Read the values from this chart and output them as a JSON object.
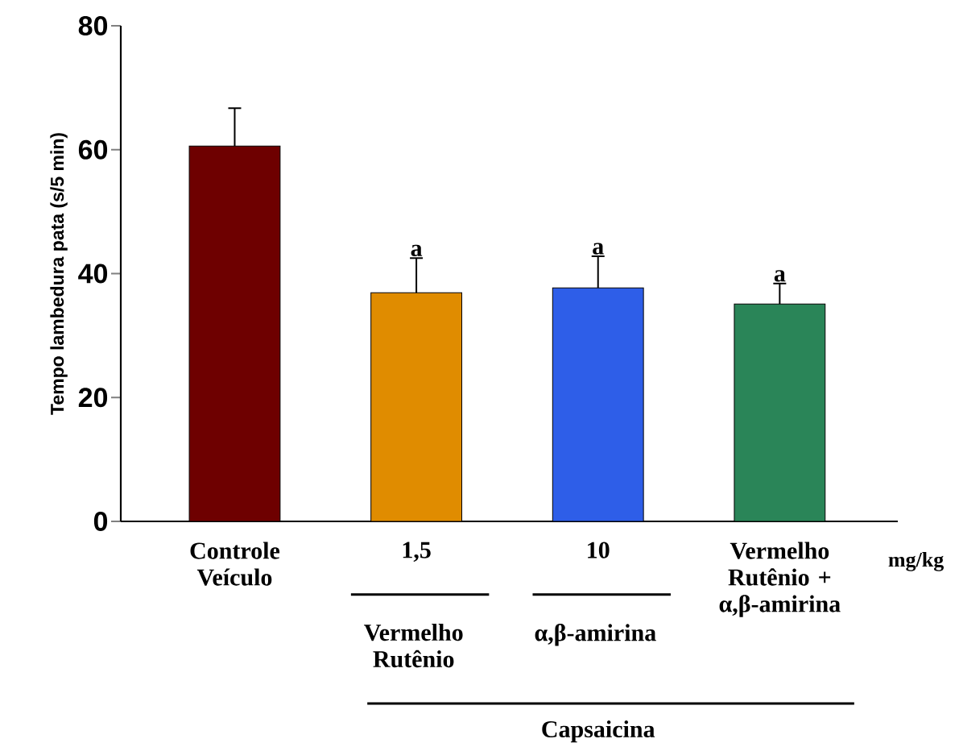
{
  "chart_data": {
    "type": "bar",
    "ylabel": "Tempo lambedura pata (s/5 min)",
    "categories": [
      "Controle Veículo",
      "1,5",
      "10",
      "Vermelho Rutênio + α,β-amirina"
    ],
    "values": [
      60.6,
      36.9,
      37.7,
      35.1
    ],
    "errors": [
      6.1,
      5.6,
      5.1,
      3.3
    ],
    "colors": [
      "#6e0000",
      "#e08c00",
      "#2e5ee8",
      "#2a8558"
    ],
    "ylim": [
      0,
      80
    ],
    "yticks": [
      0,
      20,
      40,
      60,
      80
    ],
    "grid": false,
    "annotations": [
      "mg/kg",
      "Vermelho Rutênio",
      "α,β-amirina",
      "Capsaicina",
      {
        "text": "a",
        "x": "1,5",
        "y": 42.5
      },
      {
        "text": "a",
        "x": "10",
        "y": 42.8
      },
      {
        "text": "a",
        "x": "Vermelho Rutênio + α,β-amirina",
        "y": 38.4
      }
    ]
  }
}
